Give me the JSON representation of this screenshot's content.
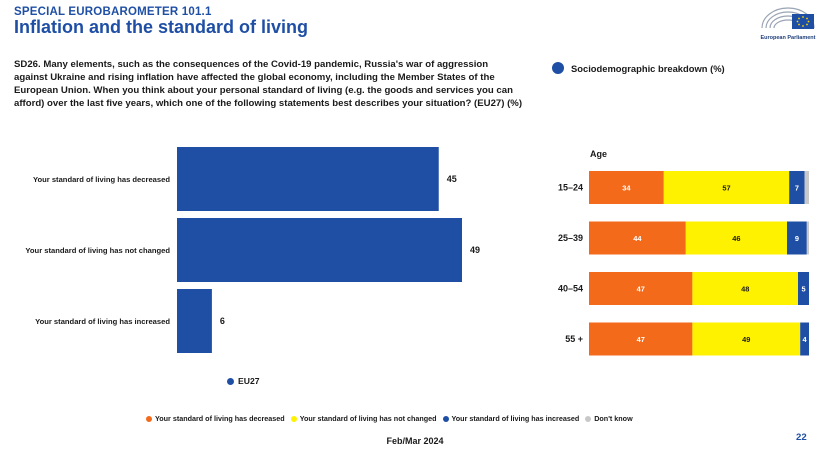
{
  "header": {
    "supertitle": "SPECIAL EUROBAROMETER 101.1",
    "title": "Inflation and the standard of living",
    "logo_text": "European Parliament"
  },
  "question": "SD26. Many elements, such as the consequences of the Covid-19 pandemic, Russia's war of aggression against Ukraine and rising inflation have affected the global economy, including the Member States of the European Union. When you think about your personal standard of living (e.g. the goods and services you can afford) over the last five years, which one of the following statements best describes your situation? (EU27) (%)",
  "socio_label": "Sociodemographic breakdown (%)",
  "colors": {
    "blue": "#1f4fa5",
    "orange": "#f46a1b",
    "yellow": "#fff200",
    "grey": "#c8c8c8"
  },
  "chart_data": [
    {
      "type": "bar",
      "orientation": "horizontal",
      "title": "EU27",
      "categories": [
        "Your standard of living has decreased",
        "Your standard of living has not changed",
        "Your standard of living has increased"
      ],
      "values": [
        45,
        49,
        6
      ],
      "legend": [
        "EU27"
      ],
      "xlim": [
        0,
        49
      ]
    },
    {
      "type": "bar",
      "orientation": "horizontal",
      "stacked": true,
      "title": "Age",
      "categories": [
        "15–24",
        "25–39",
        "40–54",
        "55 +"
      ],
      "series": [
        {
          "name": "Your standard of living has decreased",
          "values": [
            34,
            44,
            47,
            47
          ],
          "labels": [
            "34",
            "44",
            "47",
            "47"
          ]
        },
        {
          "name": "Your standard of living has not changed",
          "values": [
            57,
            46,
            48,
            49
          ],
          "labels": [
            "57",
            "46",
            "48",
            "49"
          ]
        },
        {
          "name": "Your standard of living has increased",
          "values": [
            7,
            9,
            5,
            4
          ],
          "labels": [
            "7",
            "9",
            "5",
            "4"
          ]
        },
        {
          "name": "Don't know",
          "values": [
            2,
            1,
            0,
            0
          ],
          "labels": [
            "",
            "",
            "",
            ""
          ]
        }
      ],
      "xlim": [
        0,
        100
      ]
    }
  ],
  "legend_items": [
    {
      "label": "Your standard of living has decreased",
      "color": "#f46a1b"
    },
    {
      "label": "Your standard of living has not changed",
      "color": "#fff200"
    },
    {
      "label": "Your standard of living has increased",
      "color": "#1f4fa5"
    },
    {
      "label": "Don't know",
      "color": "#c8c8c8"
    }
  ],
  "footer": {
    "date": "Feb/Mar 2024",
    "page": "22"
  }
}
